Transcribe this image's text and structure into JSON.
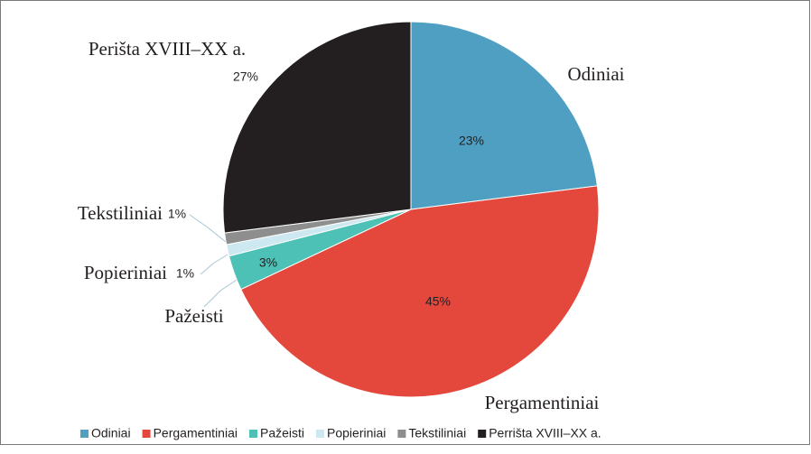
{
  "chart_data": {
    "type": "pie",
    "categories": [
      "Odiniai",
      "Pergamentiniai",
      "Pažeisti",
      "Popieriniai",
      "Tekstiliniai",
      "Perišta XVIII–XX a."
    ],
    "legend": [
      "Odiniai",
      "Pergamentiniai",
      "Pažeisti",
      "Popieriniai",
      "Tekstiliniai",
      "Perrišta XVIII–XX a."
    ],
    "values": [
      23,
      45,
      3,
      1,
      1,
      27
    ],
    "value_labels": [
      "23%",
      "45%",
      "3%",
      "1%",
      "1%",
      "27%"
    ],
    "colors": [
      "#4f9fc3",
      "#e4483c",
      "#4dc1b5",
      "#cde8f0",
      "#8e8e8e",
      "#231f20"
    ]
  }
}
